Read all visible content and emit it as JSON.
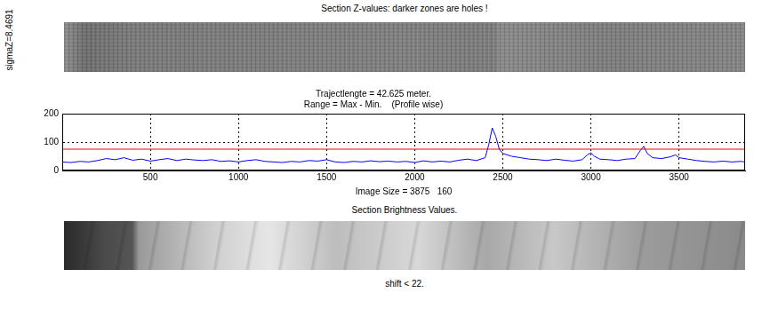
{
  "chart_data": {
    "type": "line",
    "title": [
      "Trajectlengte = 42.625 meter.",
      "Range = Max - Min.    (Profile wise)"
    ],
    "xlabel": "Image Size = 3875   160",
    "x": [
      0,
      50,
      100,
      150,
      200,
      250,
      300,
      350,
      400,
      450,
      500,
      550,
      600,
      650,
      700,
      750,
      800,
      850,
      900,
      950,
      1000,
      1050,
      1100,
      1150,
      1200,
      1250,
      1300,
      1350,
      1400,
      1450,
      1500,
      1550,
      1600,
      1650,
      1700,
      1750,
      1800,
      1850,
      1900,
      1950,
      2000,
      2050,
      2100,
      2150,
      2200,
      2250,
      2300,
      2350,
      2400,
      2420,
      2440,
      2460,
      2480,
      2500,
      2550,
      2600,
      2650,
      2700,
      2750,
      2800,
      2850,
      2900,
      2950,
      2980,
      3000,
      3020,
      3050,
      3100,
      3150,
      3200,
      3250,
      3280,
      3300,
      3320,
      3350,
      3400,
      3450,
      3480,
      3500,
      3550,
      3600,
      3650,
      3700,
      3750,
      3800,
      3850,
      3875
    ],
    "values": [
      30,
      28,
      32,
      30,
      35,
      42,
      38,
      45,
      36,
      40,
      33,
      38,
      42,
      35,
      40,
      37,
      35,
      38,
      32,
      34,
      30,
      35,
      38,
      32,
      30,
      28,
      32,
      30,
      35,
      33,
      38,
      30,
      28,
      32,
      30,
      34,
      31,
      33,
      30,
      32,
      28,
      34,
      30,
      33,
      30,
      36,
      40,
      35,
      45,
      90,
      150,
      120,
      75,
      60,
      50,
      45,
      40,
      38,
      35,
      40,
      36,
      33,
      38,
      55,
      62,
      50,
      40,
      38,
      35,
      40,
      42,
      70,
      85,
      60,
      45,
      42,
      48,
      55,
      45,
      40,
      35,
      32,
      30,
      33,
      30,
      32,
      30
    ],
    "color": "#0000ff",
    "threshold": {
      "value": 75,
      "color": "#ff0000"
    },
    "xlim": [
      0,
      3875
    ],
    "xticks": [
      500,
      1000,
      1500,
      2000,
      2500,
      3000,
      3500
    ],
    "ylim": [
      0,
      200
    ],
    "yticks": [
      0,
      100,
      200
    ],
    "grid": true
  },
  "top_image": {
    "title": "Section Z-values: darker zones are holes !",
    "side_label": "sigmaZ=8.4691"
  },
  "bottom_image": {
    "title": "Section Brightness Values."
  },
  "footer": "shift < 22."
}
